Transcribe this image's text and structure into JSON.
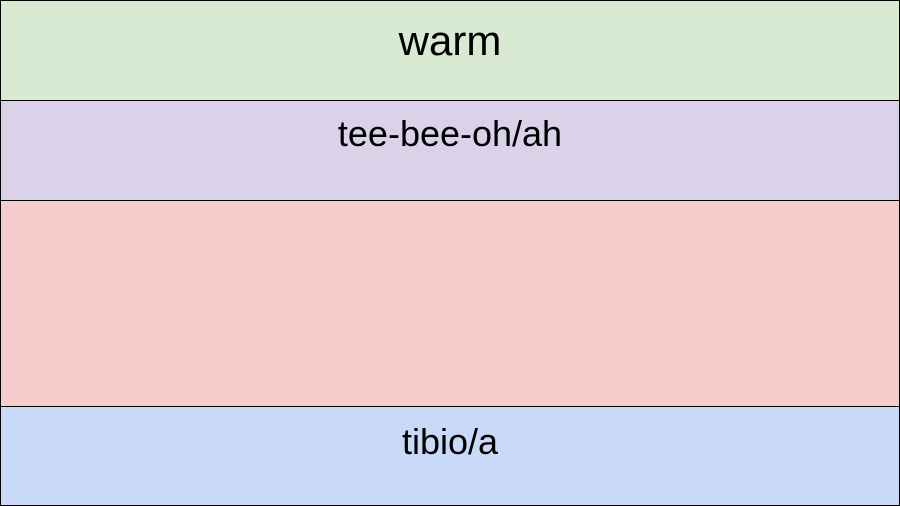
{
  "rows": [
    {
      "label": "warm"
    },
    {
      "label": "tee-bee-oh/ah"
    },
    {
      "label": "tibio/a"
    }
  ]
}
